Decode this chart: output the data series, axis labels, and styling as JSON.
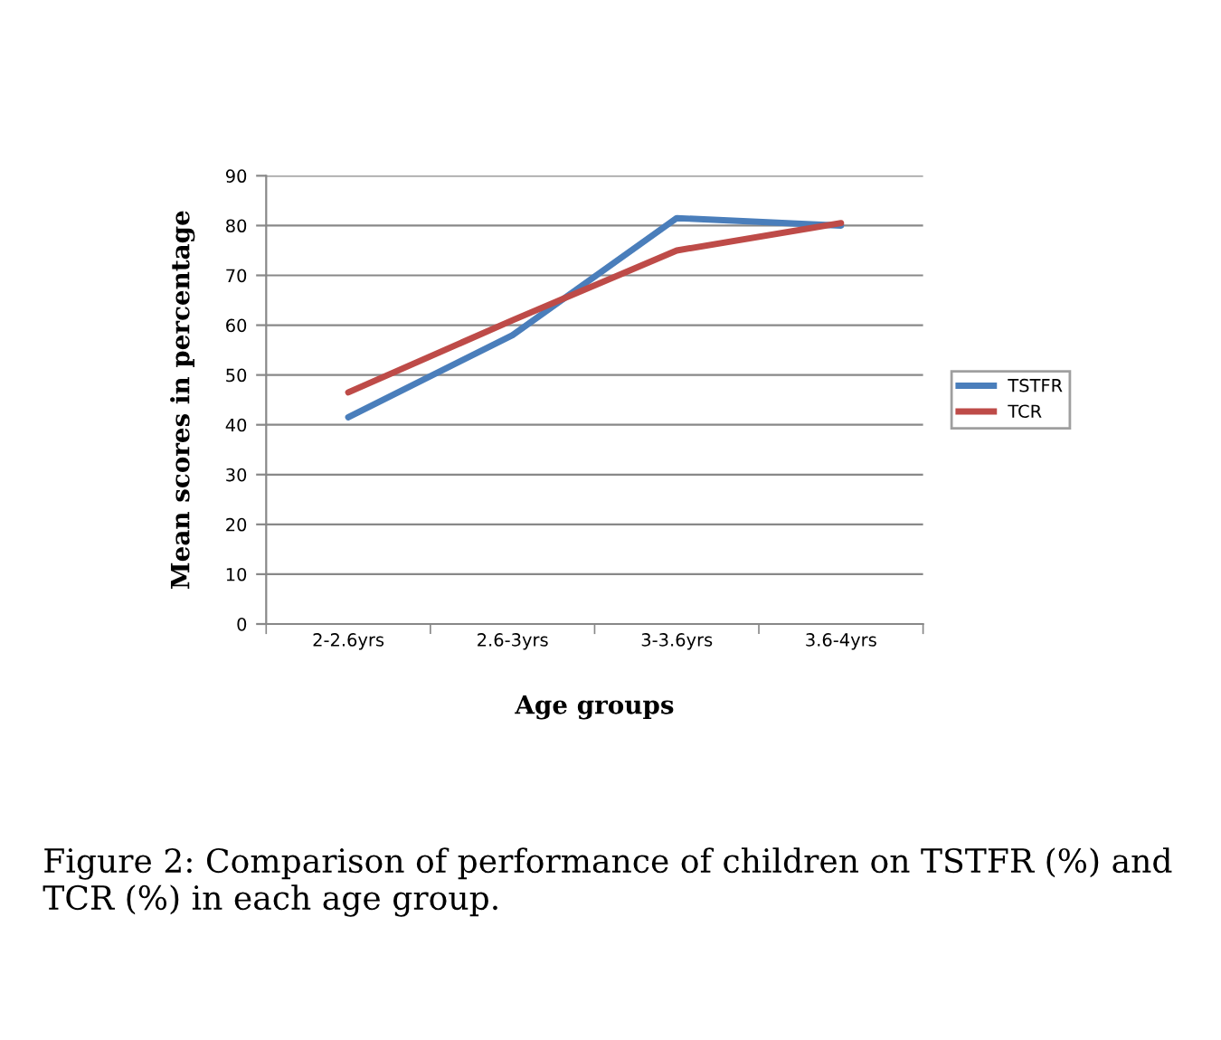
{
  "chart_data": {
    "type": "line",
    "xlabel": "Age groups",
    "ylabel": "Mean scores in percentage",
    "categories": [
      "2-2.6yrs",
      "2.6-3yrs",
      "3-3.6yrs",
      "3.6-4yrs"
    ],
    "series": [
      {
        "name": "TSTFR",
        "color": "#4a7ebb",
        "values": [
          41.5,
          58,
          81.5,
          80
        ]
      },
      {
        "name": "TCR",
        "color": "#be4b48",
        "values": [
          46.5,
          61,
          75,
          80.5
        ]
      }
    ],
    "ylim": [
      0,
      90
    ],
    "yticks": [
      0,
      10,
      20,
      30,
      40,
      50,
      60,
      70,
      80,
      90
    ],
    "grid": "y",
    "legend": "right",
    "marker": "none",
    "annotations": [
      "Figure 2: Comparison of performance of children on TSTFR (%) and TCR (%) in each age group."
    ]
  }
}
